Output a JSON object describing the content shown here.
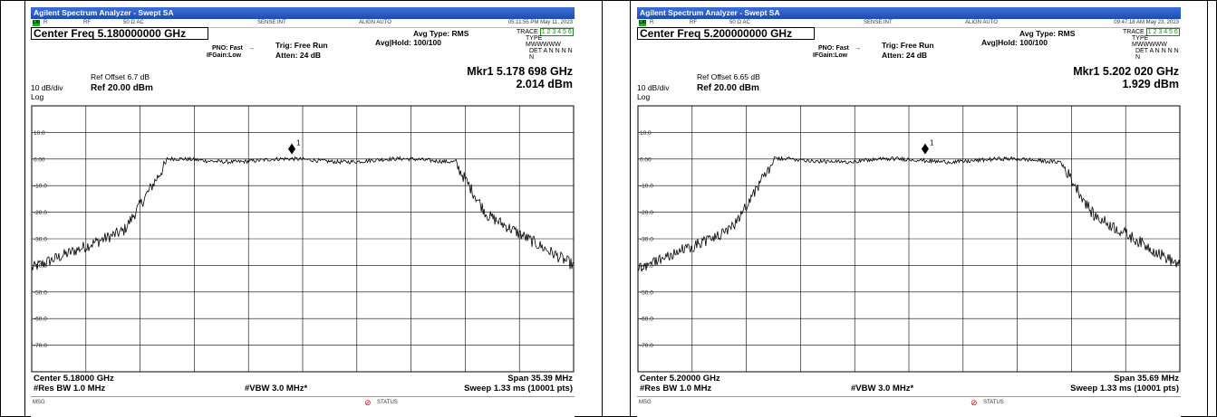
{
  "panels": [
    {
      "title": "Agilent Spectrum Analyzer - Swept SA",
      "status_r": "R",
      "status_rf": "RF",
      "status_ohm": "50 Ω  AC",
      "status_sense": "SENSE:INT",
      "status_align": "ALIGN AUTO",
      "timestamp": "05:11:55 PM May 11, 2023",
      "center_freq": "Center Freq 5.180000000 GHz",
      "pno": "PNO: Fast",
      "ifgain": "IFGain:Low",
      "trig": "Trig: Free Run",
      "atten": "Atten: 24 dB",
      "avg_type": "Avg Type: RMS",
      "avg_hold": "Avg|Hold: 100/100",
      "trace_label": "TRACE",
      "trace_nums": "1 2 3 4 5 6",
      "type_label": "TYPE",
      "type_val": "MWWWWW",
      "det_label": "DET",
      "det_val": "A N N N N N",
      "ref_offset": "Ref Offset 6.7 dB",
      "scale": "10 dB/div",
      "log": "Log",
      "ref_level": "Ref 20.00 dBm",
      "marker_freq": "Mkr1 5.178 698 GHz",
      "marker_val": "2.014 dBm",
      "marker_label": "1",
      "y_ticks": [
        "10.0",
        "0.00",
        "-10.0",
        "-20.0",
        "-30.0",
        "-40.0",
        "-50.0",
        "-60.0",
        "-70.0"
      ],
      "center_bottom": "Center 5.18000 GHz",
      "res_bw": "#Res BW 1.0 MHz",
      "vbw": "#VBW 3.0 MHz*",
      "span": "Span 35.39 MHz",
      "sweep": "Sweep  1.33 ms (10001 pts)",
      "msg": "MSG",
      "status": "STATUS"
    },
    {
      "title": "Agilent Spectrum Analyzer - Swept SA",
      "status_r": "R",
      "status_rf": "RF",
      "status_ohm": "50 Ω  AC",
      "status_sense": "SENSE:INT",
      "status_align": "ALIGN AUTO",
      "timestamp": "09:47:18 AM May 23, 2023",
      "center_freq": "Center Freq 5.200000000 GHz",
      "pno": "PNO: Fast",
      "ifgain": "IFGain:Low",
      "trig": "Trig: Free Run",
      "atten": "Atten: 24 dB",
      "avg_type": "Avg Type: RMS",
      "avg_hold": "Avg|Hold: 100/100",
      "trace_label": "TRACE",
      "trace_nums": "1 2 3 4 5 6",
      "type_label": "TYPE",
      "type_val": "MWWWWW",
      "det_label": "DET",
      "det_val": "A N N N N N",
      "ref_offset": "Ref Offset 6.65 dB",
      "scale": "10 dB/div",
      "log": "Log",
      "ref_level": "Ref 20.00 dBm",
      "marker_freq": "Mkr1 5.202 020 GHz",
      "marker_val": "1.929 dBm",
      "marker_label": "1",
      "y_ticks": [
        "10.0",
        "0.00",
        "-10.0",
        "-20.0",
        "-30.0",
        "-40.0",
        "-50.0",
        "-60.0",
        "-70.0"
      ],
      "center_bottom": "Center 5.20000 GHz",
      "res_bw": "#Res BW 1.0 MHz",
      "vbw": "#VBW 3.0 MHz*",
      "span": "Span 35.69 MHz",
      "sweep": "Sweep  1.33 ms (10001 pts)",
      "msg": "MSG",
      "status": "STATUS"
    }
  ],
  "colors": {
    "titlebar": "#2a58c6",
    "trace": "#000000",
    "grid": "#000000",
    "lxi_green": "#22aa22"
  }
}
